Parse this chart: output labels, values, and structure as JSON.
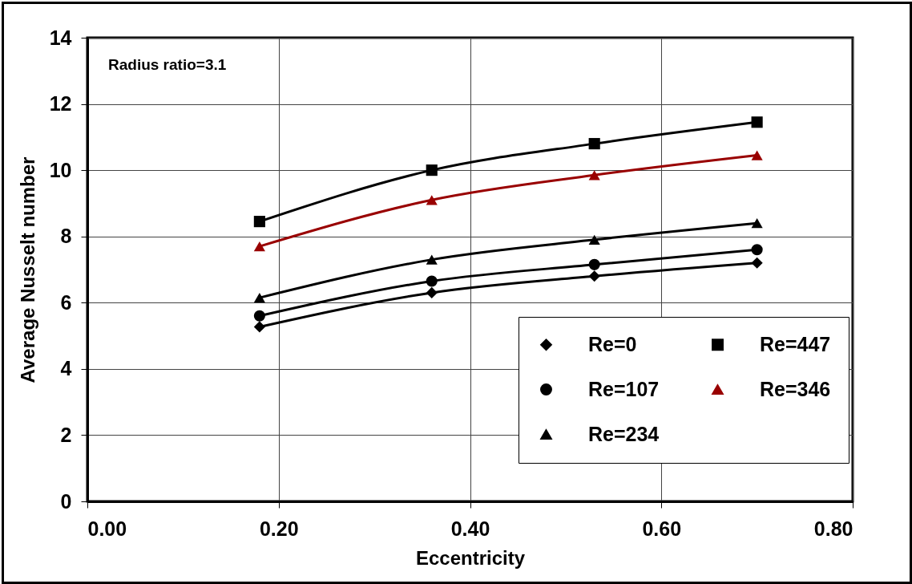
{
  "chart_data": {
    "type": "line",
    "xlabel": "Eccentricity",
    "ylabel": "Average Nusselt number",
    "annotations": [
      "Radius ratio=3.1"
    ],
    "x": [
      0.18,
      0.36,
      0.53,
      0.7
    ],
    "series": [
      {
        "name": "Re=0",
        "color": "#000000",
        "marker": "diamond",
        "values": [
          5.27,
          6.3,
          6.8,
          7.2
        ]
      },
      {
        "name": "Re=107",
        "color": "#000000",
        "marker": "circle",
        "values": [
          5.6,
          6.65,
          7.15,
          7.6
        ]
      },
      {
        "name": "Re=234",
        "color": "#000000",
        "marker": "triangle",
        "values": [
          6.15,
          7.3,
          7.9,
          8.4
        ]
      },
      {
        "name": "Re=447",
        "color": "#000000",
        "marker": "square",
        "values": [
          8.45,
          10.0,
          10.8,
          11.45
        ]
      },
      {
        "name": "Re=346",
        "color": "#990000",
        "marker": "triangle",
        "values": [
          7.7,
          9.1,
          9.85,
          10.45
        ]
      }
    ],
    "xlim": [
      0,
      0.8
    ],
    "xticks": [
      {
        "value": 0,
        "label": "0.00"
      },
      {
        "value": 0.2,
        "label": "0.20"
      },
      {
        "value": 0.4,
        "label": "0.40"
      },
      {
        "value": 0.6,
        "label": "0.60"
      },
      {
        "value": 0.8,
        "label": "0.80"
      }
    ],
    "ylim": [
      0,
      14
    ],
    "yticks": [
      0,
      2,
      4,
      6,
      8,
      10,
      12,
      14
    ],
    "grid": true,
    "legend": "bottom right"
  }
}
